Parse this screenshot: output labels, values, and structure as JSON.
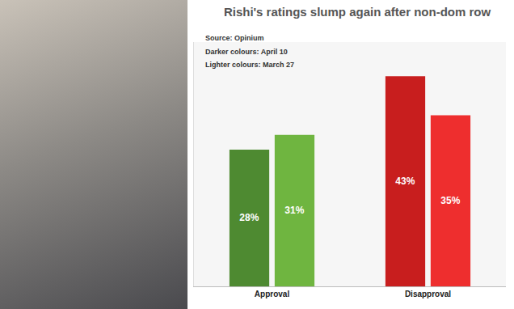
{
  "chart_data": {
    "type": "bar",
    "title": "Rishi's ratings slump again after non-dom row",
    "source": "Source: Opinium",
    "notes": [
      "Darker colours: April 10",
      "Lighter colours: March 27"
    ],
    "categories": [
      "Approval",
      "Disapproval"
    ],
    "series": [
      {
        "values": [
          28,
          43
        ],
        "value_labels": [
          "28%",
          "43%"
        ],
        "colors": [
          "#4e8a31",
          "#c81e1e"
        ]
      },
      {
        "values": [
          31,
          35
        ],
        "value_labels": [
          "31%",
          "35%"
        ],
        "colors": [
          "#6fb540",
          "#ee2e2e"
        ]
      }
    ],
    "ylim": [
      0,
      50
    ],
    "yticks": [],
    "tick_labels": "x",
    "data_labels": true,
    "grid": false
  }
}
